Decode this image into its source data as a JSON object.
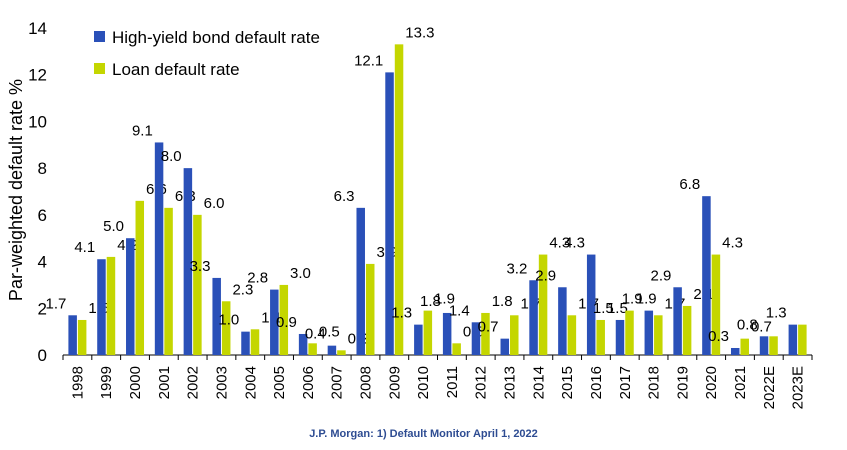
{
  "chart_data": {
    "type": "bar",
    "ylabel": "Par-weighted default rate %",
    "xlabel": "",
    "ylim": [
      0,
      14
    ],
    "yticks": [
      0,
      2,
      4,
      6,
      8,
      10,
      12,
      14
    ],
    "categories": [
      "1998",
      "1999",
      "2000",
      "2001",
      "2002",
      "2003",
      "2004",
      "2005",
      "2006",
      "2007",
      "2008",
      "2009",
      "2010",
      "2011",
      "2012",
      "2013",
      "2014",
      "2015",
      "2016",
      "2017",
      "2018",
      "2019",
      "2020",
      "2021",
      "2022E",
      "2023E"
    ],
    "series": [
      {
        "name": "High-yield bond default rate",
        "color": "#2a50b8",
        "values": [
          1.7,
          4.1,
          5.0,
          9.1,
          8.0,
          3.3,
          1.0,
          2.8,
          0.9,
          0.4,
          6.3,
          12.1,
          1.3,
          1.8,
          1.4,
          0.7,
          3.2,
          2.9,
          4.3,
          1.5,
          1.9,
          2.9,
          6.8,
          0.3,
          0.8,
          1.3
        ],
        "labels": [
          "1.7",
          "4.1",
          "5.0",
          "9.1",
          "8.0",
          "3.3",
          "1.0",
          "2.8",
          "0.9",
          "0.4",
          "6.3",
          "12.1",
          "1.3",
          "1.8",
          "1.4",
          "0.7",
          "3.2",
          "2.9",
          "4.3",
          "1.5",
          "1.9",
          "2.9",
          "6.8",
          "0.3",
          "0.8",
          "1.3"
        ]
      },
      {
        "name": "Loan default rate",
        "color": "#c4d600",
        "values": [
          1.5,
          4.2,
          6.6,
          6.3,
          6.0,
          2.3,
          1.1,
          3.0,
          0.5,
          0.2,
          3.9,
          13.3,
          1.9,
          0.5,
          1.8,
          1.7,
          4.3,
          1.7,
          1.5,
          1.9,
          1.7,
          2.1,
          4.3,
          0.7,
          0.8,
          1.3
        ],
        "labels": [
          "1.5",
          "4.2",
          "6.6",
          "6.3",
          "6.0",
          "2.3",
          "1.1",
          "3.0",
          "0.5",
          "0.2",
          "3.9",
          "13.3",
          "1.9",
          "0.5",
          "1.8",
          "1.7",
          "4.3",
          "1.7",
          "1.5",
          "1.9",
          "1.7",
          "2.1",
          "4.3",
          "0.7",
          "",
          ""
        ]
      }
    ],
    "legend": "top-left",
    "grid": false
  },
  "source": "J.P. Morgan: 1) Default Monitor April 1, 2022"
}
